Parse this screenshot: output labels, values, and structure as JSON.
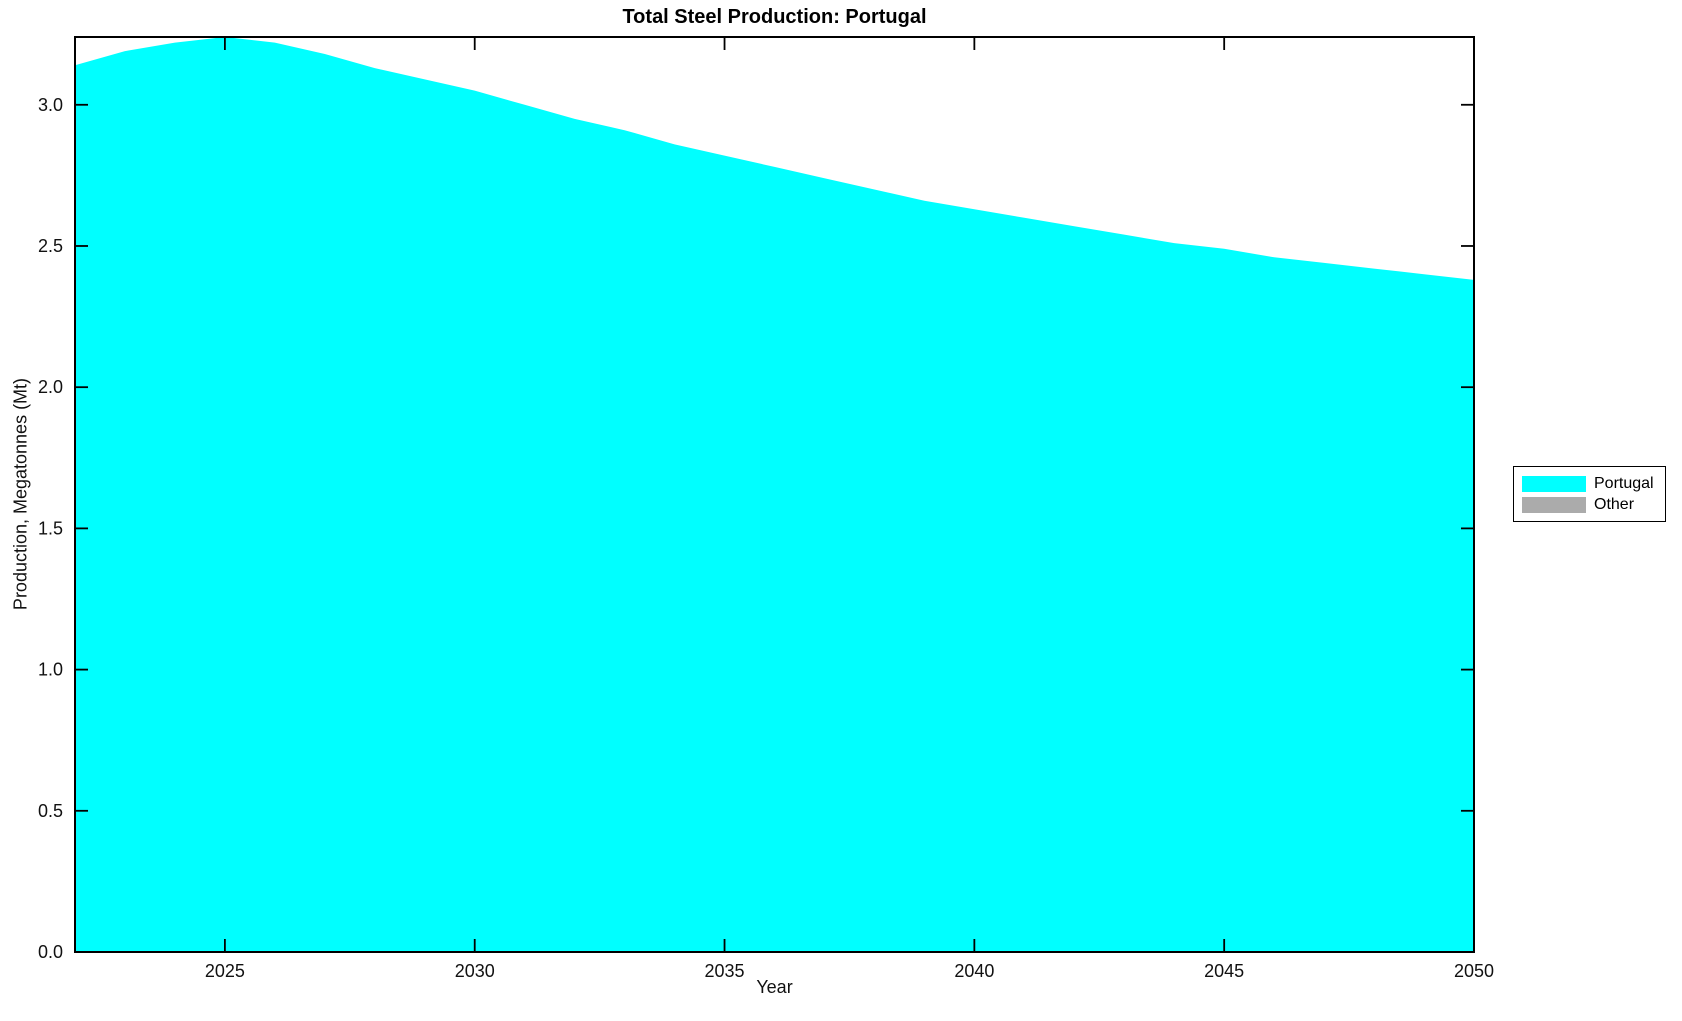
{
  "title": "Total Steel Production: Portugal",
  "axes": {
    "xlabel": "Year",
    "ylabel": "Production, Megatonnes (Mt)"
  },
  "legend": {
    "items": [
      {
        "label": "Portugal",
        "color": "#00FFFF"
      },
      {
        "label": "Other",
        "color": "#ABABAB"
      }
    ]
  },
  "colors": {
    "background": "#FFFFFF",
    "axis": "#000000",
    "tick_text": "#111111",
    "portugal_area": "#00FFFF",
    "other_area": "#ABABAB"
  },
  "chart_data": {
    "type": "area",
    "title": "Total Steel Production: Portugal",
    "xlabel": "Year",
    "ylabel": "Production, Megatonnes (Mt)",
    "xlim": [
      2022,
      2050
    ],
    "ylim": [
      0,
      3.24
    ],
    "xticks": [
      2025,
      2030,
      2035,
      2040,
      2045,
      2050
    ],
    "xtick_labels": [
      "2025",
      "2030",
      "2035",
      "2040",
      "2045",
      "2050"
    ],
    "yticks": [
      0,
      0.5,
      1.0,
      1.5,
      2.0,
      2.5,
      3.0
    ],
    "ytick_labels": [
      "0.0",
      "0.5",
      "1.0",
      "1.5",
      "2.0",
      "2.5",
      "3.0"
    ],
    "grid": false,
    "legend_position": "outside-right",
    "x": [
      2022,
      2023,
      2024,
      2025,
      2026,
      2027,
      2028,
      2029,
      2030,
      2031,
      2032,
      2033,
      2034,
      2035,
      2036,
      2037,
      2038,
      2039,
      2040,
      2041,
      2042,
      2043,
      2044,
      2045,
      2046,
      2047,
      2048,
      2049,
      2050
    ],
    "series": [
      {
        "name": "Portugal",
        "color": "#00FFFF",
        "values": [
          3.14,
          3.19,
          3.22,
          3.24,
          3.22,
          3.18,
          3.13,
          3.09,
          3.05,
          3.0,
          2.95,
          2.91,
          2.86,
          2.82,
          2.78,
          2.74,
          2.7,
          2.66,
          2.63,
          2.6,
          2.57,
          2.54,
          2.51,
          2.49,
          2.46,
          2.44,
          2.42,
          2.4,
          2.38
        ]
      },
      {
        "name": "Other",
        "color": "#ABABAB",
        "values": [
          0,
          0,
          0,
          0,
          0,
          0,
          0,
          0,
          0,
          0,
          0,
          0,
          0,
          0,
          0,
          0,
          0,
          0,
          0,
          0,
          0,
          0,
          0,
          0,
          0,
          0,
          0,
          0,
          0
        ]
      }
    ]
  }
}
